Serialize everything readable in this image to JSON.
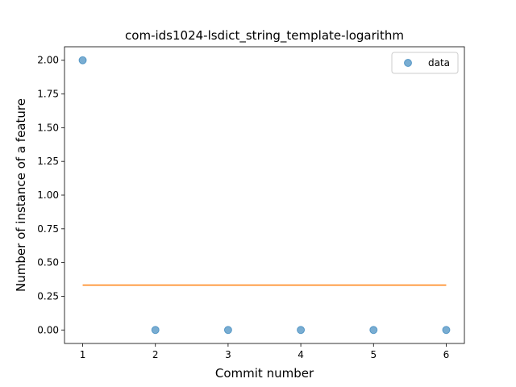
{
  "chart_data": {
    "type": "scatter",
    "title": "com-ids1024-lsdict_string_template-logarithm",
    "xlabel": "Commit number",
    "ylabel": "Number of instance of a feature",
    "xlim": [
      0.75,
      6.25
    ],
    "ylim": [
      -0.1,
      2.1
    ],
    "xticks": [
      "1",
      "2",
      "3",
      "4",
      "5",
      "6"
    ],
    "yticks": [
      "0.00",
      "0.25",
      "0.50",
      "0.75",
      "1.00",
      "1.25",
      "1.50",
      "1.75",
      "2.00"
    ],
    "series": [
      {
        "name": "data",
        "kind": "scatter",
        "color": "#1f77b4",
        "x": [
          1,
          2,
          3,
          4,
          5,
          6
        ],
        "y": [
          2,
          0,
          0,
          0,
          0,
          0
        ]
      },
      {
        "kind": "line",
        "color": "#ff7f0e",
        "x": [
          1,
          6
        ],
        "y": [
          0.333,
          0.333
        ]
      }
    ],
    "legend": {
      "placement": "top-right",
      "entries": [
        "data"
      ]
    },
    "grid": false
  }
}
